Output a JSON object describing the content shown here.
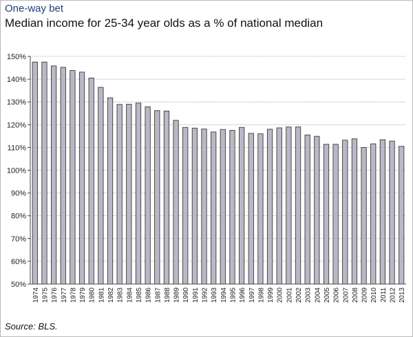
{
  "header": {
    "title": "One-way bet",
    "subtitle": "Median income for 25-34 year olds as a % of national median"
  },
  "footer": {
    "source": "Source: BLS."
  },
  "colors": {
    "bar_fill": "#b8b8c6",
    "bar_stroke": "#3a3a3a",
    "title": "#1f3f77",
    "grid": "#8c8c8c"
  },
  "chart_data": {
    "type": "bar",
    "grid": true,
    "legend": "none",
    "ylim": [
      50,
      150
    ],
    "yticks": [
      "50%",
      "60%",
      "70%",
      "80%",
      "90%",
      "100%",
      "110%",
      "120%",
      "130%",
      "140%",
      "150%"
    ],
    "categories": [
      "1974",
      "1975",
      "1976",
      "1977",
      "1978",
      "1979",
      "1980",
      "1981",
      "1982",
      "1983",
      "1984",
      "1985",
      "1986",
      "1987",
      "1988",
      "1989",
      "1990",
      "1991",
      "1992",
      "1993",
      "1994",
      "1995",
      "1996",
      "1997",
      "1998",
      "1999",
      "2000",
      "2001",
      "2002",
      "2003",
      "2004",
      "2005",
      "2006",
      "2007",
      "2008",
      "2009",
      "2010",
      "2011",
      "2012",
      "2013"
    ],
    "values": [
      147.5,
      147.5,
      145.8,
      145.2,
      143.8,
      143.1,
      140.5,
      136.4,
      131.8,
      128.9,
      129.0,
      129.5,
      127.9,
      126.2,
      126.0,
      121.9,
      118.8,
      118.5,
      118.1,
      116.8,
      117.9,
      117.5,
      118.8,
      116.2,
      116.0,
      118.0,
      118.6,
      119.0,
      119.0,
      115.5,
      114.9,
      111.4,
      111.4,
      113.2,
      113.8,
      110.0,
      111.6,
      113.4,
      112.8,
      110.5
    ]
  }
}
